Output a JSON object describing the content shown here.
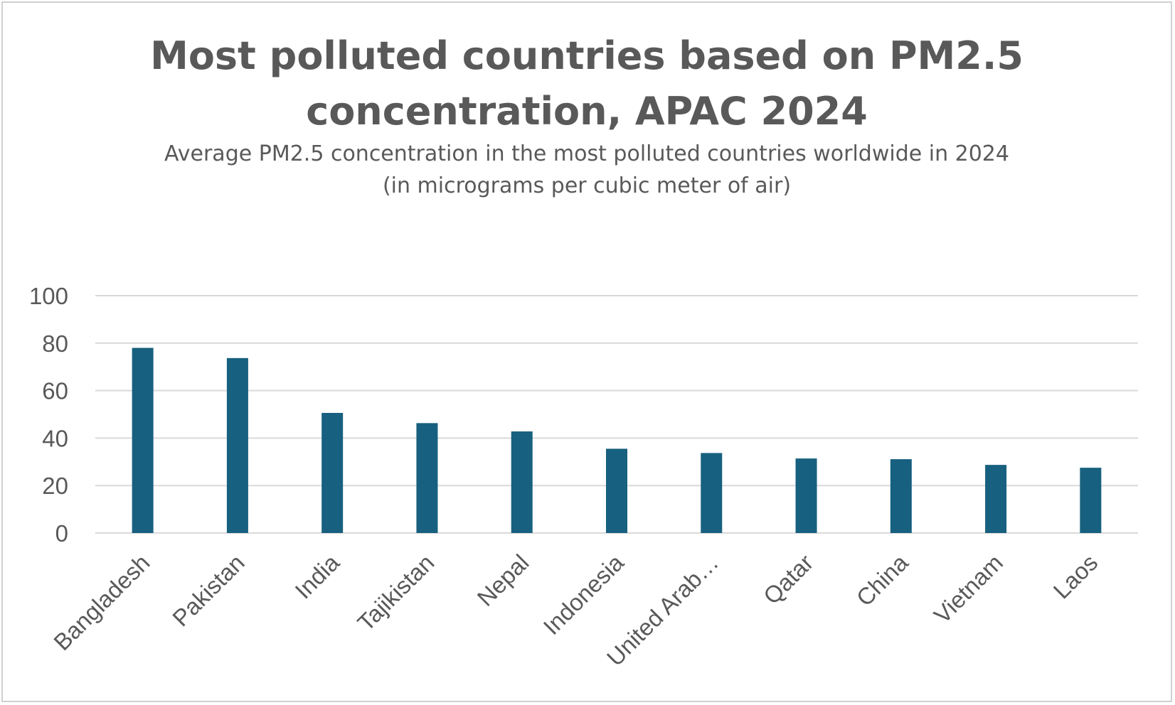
{
  "chart_data": {
    "type": "bar",
    "title_lines": [
      "Most polluted countries based on PM2.5",
      "concentration, APAC 2024"
    ],
    "subtitle_lines": [
      "Average PM2.5 concentration in the most polluted countries worldwide in 2024",
      "(in micrograms per cubic meter of air)"
    ],
    "xlabel": "",
    "ylabel": "",
    "categories": [
      "Bangladesh",
      "Pakistan",
      "India",
      "Tajikistan",
      "Nepal",
      "Indonesia",
      "United Arab…",
      "Qatar",
      "China",
      "Vietnam",
      "Laos"
    ],
    "values": [
      78.0,
      73.7,
      50.6,
      46.3,
      42.8,
      35.5,
      33.7,
      31.4,
      31.1,
      28.7,
      27.5
    ],
    "ylim": [
      0,
      100
    ],
    "yticks": [
      "0",
      "20",
      "40",
      "60",
      "80",
      "100"
    ],
    "grid": true,
    "legend": "none",
    "bar_color": "#17607f"
  }
}
